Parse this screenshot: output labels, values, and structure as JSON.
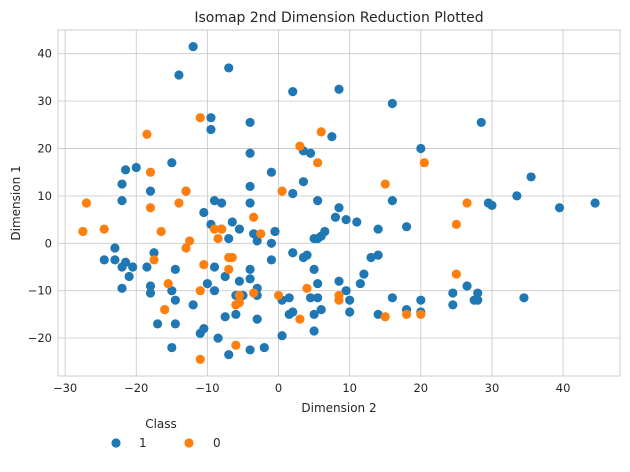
{
  "chart_data": {
    "type": "scatter",
    "title": "Isomap 2nd Dimension Reduction Plotted",
    "xlabel": "Dimension 2",
    "ylabel": "Dimension 1",
    "xlim": [
      -31,
      48
    ],
    "ylim": [
      -28,
      45
    ],
    "xticks": [
      -30,
      -20,
      -10,
      0,
      10,
      20,
      30,
      40
    ],
    "yticks": [
      -20,
      -10,
      0,
      10,
      20,
      30,
      40
    ],
    "grid": true,
    "legend": {
      "title": "Class",
      "placement": "below-left"
    },
    "series": [
      {
        "name": "1",
        "color": "#1f77b4",
        "points": [
          [
            -12,
            41.5
          ],
          [
            -14,
            35.5
          ],
          [
            -7,
            37
          ],
          [
            2,
            32
          ],
          [
            8.5,
            32.5
          ],
          [
            16,
            29.5
          ],
          [
            28.5,
            25.5
          ],
          [
            -9.5,
            26.5
          ],
          [
            -9.5,
            24
          ],
          [
            -4,
            25.5
          ],
          [
            20,
            20
          ],
          [
            3.5,
            19.5
          ],
          [
            4.5,
            19
          ],
          [
            7.5,
            22.5
          ],
          [
            -15,
            17
          ],
          [
            -20,
            16
          ],
          [
            -21.5,
            15.5
          ],
          [
            -4,
            19
          ],
          [
            -1,
            15
          ],
          [
            3.5,
            13
          ],
          [
            -22,
            12.5
          ],
          [
            -18,
            11
          ],
          [
            -13,
            11
          ],
          [
            -4,
            12
          ],
          [
            35.5,
            14
          ],
          [
            33.5,
            10
          ],
          [
            29.5,
            8.5
          ],
          [
            30,
            8
          ],
          [
            39.5,
            7.5
          ],
          [
            44.5,
            8.5
          ],
          [
            -22,
            9
          ],
          [
            -9,
            9
          ],
          [
            -8,
            8.5
          ],
          [
            -4,
            8.5
          ],
          [
            2,
            10.5
          ],
          [
            8.5,
            7.5
          ],
          [
            5.5,
            9
          ],
          [
            16,
            9
          ],
          [
            18,
            3.5
          ],
          [
            -10.5,
            6.5
          ],
          [
            -9.5,
            4
          ],
          [
            -8,
            3
          ],
          [
            -6.5,
            4.5
          ],
          [
            -5.5,
            3
          ],
          [
            -7,
            1
          ],
          [
            -3.5,
            2
          ],
          [
            -3,
            0.5
          ],
          [
            -0.5,
            2.5
          ],
          [
            -1,
            0
          ],
          [
            5.5,
            1
          ],
          [
            5,
            1
          ],
          [
            6,
            1.5
          ],
          [
            6.5,
            2.5
          ],
          [
            8,
            5.5
          ],
          [
            9.5,
            5
          ],
          [
            11,
            4.5
          ],
          [
            14,
            3
          ],
          [
            -17.5,
            -2
          ],
          [
            -18.5,
            -5
          ],
          [
            -23,
            -1
          ],
          [
            -24.5,
            -3.5
          ],
          [
            -23,
            -3.5
          ],
          [
            -22,
            -5
          ],
          [
            -21.5,
            -4
          ],
          [
            -20.5,
            -5
          ],
          [
            -21,
            -7
          ],
          [
            -14.5,
            -5.5
          ],
          [
            -9,
            -5
          ],
          [
            -4,
            -5.5
          ],
          [
            -4,
            -7.5
          ],
          [
            -1,
            -3.5
          ],
          [
            -7.5,
            -7
          ],
          [
            -5.5,
            -8
          ],
          [
            -3,
            -9.5
          ],
          [
            -3,
            -11
          ],
          [
            -5,
            -11
          ],
          [
            -6,
            -11
          ],
          [
            -10,
            -8.5
          ],
          [
            -9,
            -10
          ],
          [
            2,
            -2
          ],
          [
            3.5,
            -3
          ],
          [
            4,
            -2.5
          ],
          [
            5,
            -5.5
          ],
          [
            5.5,
            -8.5
          ],
          [
            8.5,
            -8
          ],
          [
            12,
            -6.5
          ],
          [
            13,
            -3
          ],
          [
            14,
            -2.5
          ],
          [
            9.5,
            -10
          ],
          [
            11.5,
            -8.5
          ],
          [
            -18,
            -9
          ],
          [
            -18,
            -10.5
          ],
          [
            -22,
            -9.5
          ],
          [
            -15,
            -10
          ],
          [
            -14.5,
            -12
          ],
          [
            -12,
            -13
          ],
          [
            -7.5,
            -15.5
          ],
          [
            -6,
            -15
          ],
          [
            -3,
            -16
          ],
          [
            0.5,
            -12
          ],
          [
            1.5,
            -11.5
          ],
          [
            2,
            -14.5
          ],
          [
            1.5,
            -15
          ],
          [
            4.5,
            -11.5
          ],
          [
            5.5,
            -11.5
          ],
          [
            5,
            -15
          ],
          [
            6,
            -14
          ],
          [
            10,
            -12
          ],
          [
            10,
            -14.5
          ],
          [
            14,
            -15
          ],
          [
            16,
            -11.5
          ],
          [
            18,
            -14
          ],
          [
            20,
            -12
          ],
          [
            24.5,
            -13
          ],
          [
            24.5,
            -10.5
          ],
          [
            26.5,
            -9
          ],
          [
            28,
            -10.5
          ],
          [
            27.5,
            -12
          ],
          [
            28,
            -12
          ],
          [
            34.5,
            -11.5
          ],
          [
            -17,
            -17
          ],
          [
            -14.5,
            -17
          ],
          [
            -11,
            -19
          ],
          [
            -10.5,
            -18
          ],
          [
            -8.5,
            -20
          ],
          [
            -4,
            -22.5
          ],
          [
            -2,
            -22
          ],
          [
            -7,
            -23.5
          ],
          [
            -15,
            -22
          ],
          [
            0.5,
            -19.5
          ],
          [
            5,
            -18.5
          ],
          [
            20,
            -14.5
          ]
        ]
      },
      {
        "name": "0",
        "color": "#ff7f0e",
        "points": [
          [
            -18.5,
            23
          ],
          [
            -11,
            26.5
          ],
          [
            6,
            23.5
          ],
          [
            3,
            20.5
          ],
          [
            5.5,
            17
          ],
          [
            20.5,
            17
          ],
          [
            -18,
            15
          ],
          [
            15,
            12.5
          ],
          [
            -13,
            11
          ],
          [
            -27,
            8.5
          ],
          [
            -24.5,
            3
          ],
          [
            -27.5,
            2.5
          ],
          [
            -18,
            7.5
          ],
          [
            -14,
            8.5
          ],
          [
            0.5,
            11
          ],
          [
            26.5,
            8.5
          ],
          [
            -16.5,
            2.5
          ],
          [
            -12.5,
            0.5
          ],
          [
            -13,
            -1
          ],
          [
            -9,
            3
          ],
          [
            -8,
            3
          ],
          [
            -8.5,
            1
          ],
          [
            -3.5,
            5.5
          ],
          [
            -2.5,
            2
          ],
          [
            25,
            4
          ],
          [
            -17.5,
            -3.5
          ],
          [
            -15.5,
            -8.5
          ],
          [
            -10.5,
            -4.5
          ],
          [
            -7,
            -3
          ],
          [
            -6.5,
            -3
          ],
          [
            -7,
            -5.5
          ],
          [
            -5.5,
            -12.5
          ],
          [
            -5.5,
            -11
          ],
          [
            -3.5,
            -10.5
          ],
          [
            4,
            -9.5
          ],
          [
            8.5,
            -11
          ],
          [
            8.5,
            -12
          ],
          [
            25,
            -6.5
          ],
          [
            -16,
            -14
          ],
          [
            -11,
            -10
          ],
          [
            -6,
            -13
          ],
          [
            0,
            -11
          ],
          [
            3,
            -16
          ],
          [
            15,
            -15.5
          ],
          [
            18,
            -15
          ],
          [
            20,
            -15
          ],
          [
            -11,
            -24.5
          ],
          [
            -6,
            -21.5
          ]
        ]
      }
    ]
  }
}
